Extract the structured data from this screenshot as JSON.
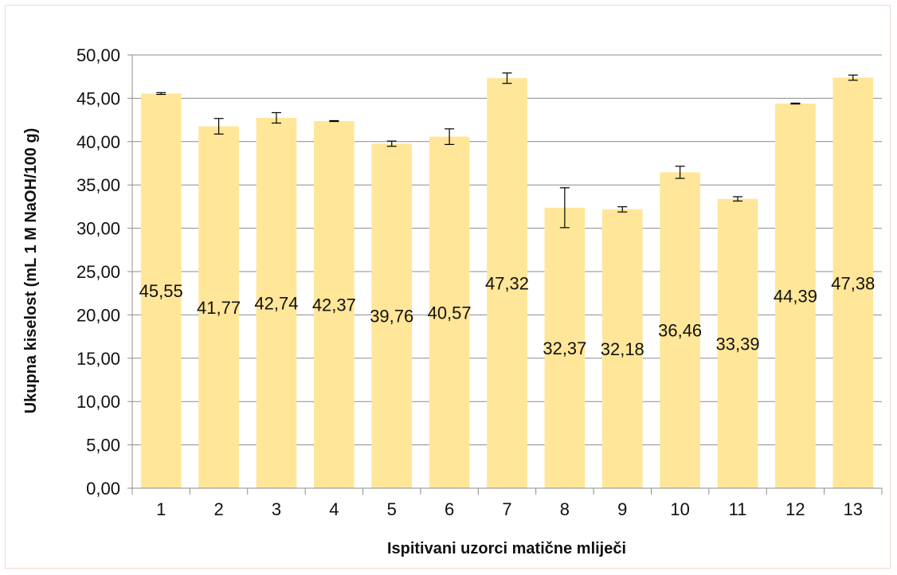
{
  "chart_data": {
    "type": "bar",
    "xlabel": "Ispitivani uzorci matične mliječi",
    "ylabel": "Ukupna kiselost (mL 1 M NaOH/100 g)",
    "categories": [
      "1",
      "2",
      "3",
      "4",
      "5",
      "6",
      "7",
      "8",
      "9",
      "10",
      "11",
      "12",
      "13"
    ],
    "values": [
      45.55,
      41.77,
      42.74,
      42.37,
      39.76,
      40.57,
      47.32,
      32.37,
      32.18,
      36.46,
      33.39,
      44.39,
      47.38
    ],
    "value_labels": [
      "45,55",
      "41,77",
      "42,74",
      "42,37",
      "39,76",
      "40,57",
      "47,32",
      "32,37",
      "32,18",
      "36,46",
      "33,39",
      "44,39",
      "47,38"
    ],
    "error": [
      0.1,
      0.9,
      0.6,
      0.05,
      0.3,
      0.9,
      0.6,
      2.3,
      0.3,
      0.7,
      0.25,
      0.05,
      0.3
    ],
    "ylim": [
      0,
      50
    ],
    "yticks": [
      0,
      5,
      10,
      15,
      20,
      25,
      30,
      35,
      40,
      45,
      50
    ],
    "ytick_labels": [
      "0,00",
      "5,00",
      "10,00",
      "15,00",
      "20,00",
      "25,00",
      "30,00",
      "35,00",
      "40,00",
      "45,00",
      "50,00"
    ],
    "grid": true,
    "legend": "none",
    "colors": {
      "bar": "#ffe699",
      "grid": "#8c8c8c",
      "axis": "#8c8c8c",
      "text": "#111111"
    }
  }
}
